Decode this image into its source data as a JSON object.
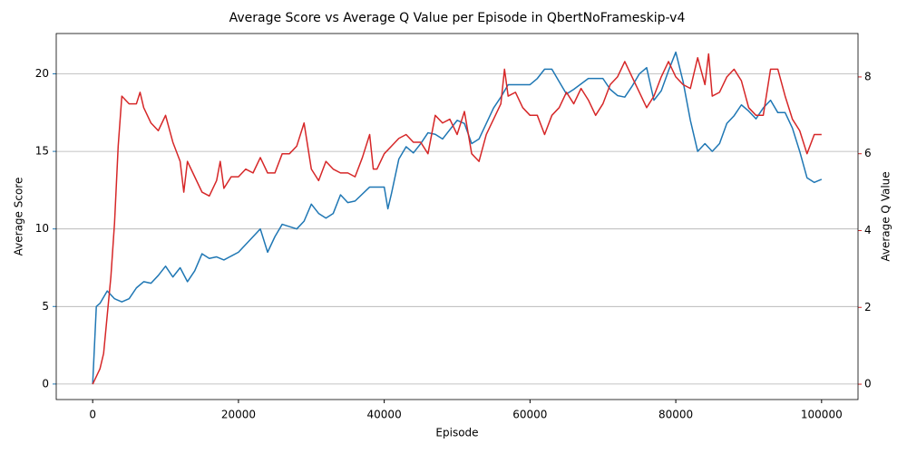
{
  "chart_data": {
    "type": "line",
    "title": "Average Score vs Average Q Value per Episode in QbertNoFrameskip-v4",
    "xlabel": "Episode",
    "ylabel": "Average Score",
    "y2label": "Average Q Value",
    "xlim": [
      -5000,
      105000
    ],
    "xticks": [
      0,
      20000,
      40000,
      60000,
      80000,
      100000
    ],
    "ylim": [
      -1.0,
      22.6
    ],
    "yticks": [
      0,
      5,
      10,
      15,
      20
    ],
    "y2lim": [
      -0.4,
      9.13
    ],
    "y2ticks": [
      0,
      2,
      4,
      6,
      8
    ],
    "grid": true,
    "series": [
      {
        "color": "#1f77b4",
        "x": [
          0,
          500,
          1000,
          2000,
          3000,
          4000,
          5000,
          6000,
          7000,
          8000,
          9000,
          10000,
          11000,
          12000,
          13000,
          14000,
          15000,
          16000,
          17000,
          18000,
          20000,
          22000,
          23000,
          24000,
          25000,
          26000,
          28000,
          29000,
          30000,
          31000,
          32000,
          33000,
          34000,
          35000,
          36000,
          38000,
          40000,
          40500,
          41000,
          42000,
          43000,
          44000,
          45000,
          46000,
          47000,
          48000,
          50000,
          51000,
          52000,
          53000,
          54000,
          55000,
          56000,
          57000,
          58000,
          60000,
          61000,
          62000,
          63000,
          64000,
          65000,
          66000,
          68000,
          70000,
          71000,
          72000,
          73000,
          74000,
          75000,
          76000,
          77000,
          78000,
          79000,
          80000,
          81000,
          82000,
          83000,
          84000,
          85000,
          86000,
          87000,
          88000,
          89000,
          90000,
          91000,
          92000,
          93000,
          94000,
          95000,
          96000,
          97000,
          98000,
          99000,
          100000
        ],
        "values": [
          0,
          5,
          5.2,
          6,
          5.5,
          5.3,
          5.5,
          6.2,
          6.6,
          6.5,
          7,
          7.6,
          6.9,
          7.5,
          6.6,
          7.3,
          8.4,
          8.1,
          8.2,
          8.0,
          8.5,
          9.5,
          10,
          8.5,
          9.5,
          10.3,
          10,
          10.5,
          11.6,
          11,
          10.7,
          11,
          12.2,
          11.7,
          11.8,
          12.7,
          12.7,
          11.3,
          12.3,
          14.5,
          15.3,
          14.9,
          15.5,
          16.2,
          16.1,
          15.8,
          17,
          16.8,
          15.5,
          15.8,
          16.8,
          17.8,
          18.5,
          19.3,
          19.3,
          19.3,
          19.7,
          20.3,
          20.3,
          19.5,
          18.7,
          19,
          19.7,
          19.7,
          19,
          18.6,
          18.5,
          19.2,
          20,
          20.4,
          18.3,
          18.9,
          20.2,
          21.4,
          19.5,
          17,
          15,
          15.5,
          15,
          15.5,
          16.8,
          17.3,
          18,
          17.6,
          17.1,
          17.8,
          18.3,
          17.5,
          17.5,
          16.5,
          15,
          13.3,
          13,
          13.2
        ]
      },
      {
        "color": "#d62728",
        "axis": "y2",
        "x": [
          0,
          1000,
          1500,
          2000,
          2500,
          3000,
          3500,
          4000,
          5000,
          6000,
          6500,
          7000,
          8000,
          9000,
          10000,
          11000,
          12000,
          12500,
          13000,
          14000,
          15000,
          16000,
          17000,
          17500,
          18000,
          19000,
          20000,
          21000,
          22000,
          23000,
          24000,
          25000,
          26000,
          27000,
          28000,
          29000,
          30000,
          31000,
          32000,
          33000,
          34000,
          35000,
          36000,
          37000,
          38000,
          38500,
          39000,
          40000,
          41000,
          42000,
          43000,
          44000,
          45000,
          46000,
          47000,
          48000,
          49000,
          50000,
          51000,
          52000,
          53000,
          54000,
          55000,
          56000,
          56500,
          57000,
          58000,
          59000,
          60000,
          61000,
          62000,
          63000,
          64000,
          65000,
          66000,
          67000,
          68000,
          69000,
          70000,
          71000,
          72000,
          73000,
          74000,
          75000,
          76000,
          77000,
          78000,
          79000,
          80000,
          81000,
          82000,
          83000,
          84000,
          84500,
          85000,
          86000,
          87000,
          88000,
          89000,
          90000,
          91000,
          92000,
          93000,
          94000,
          95000,
          96000,
          97000,
          98000,
          99000,
          100000
        ],
        "values": [
          0,
          0.4,
          0.8,
          1.8,
          2.8,
          4.2,
          6.2,
          7.5,
          7.3,
          7.3,
          7.6,
          7.2,
          6.8,
          6.6,
          7.0,
          6.3,
          5.8,
          5.0,
          5.8,
          5.4,
          5.0,
          4.9,
          5.3,
          5.8,
          5.1,
          5.4,
          5.4,
          5.6,
          5.5,
          5.9,
          5.5,
          5.5,
          6.0,
          6.0,
          6.2,
          6.8,
          5.6,
          5.3,
          5.8,
          5.6,
          5.5,
          5.5,
          5.4,
          5.9,
          6.5,
          5.6,
          5.6,
          6.0,
          6.2,
          6.4,
          6.5,
          6.3,
          6.3,
          6.0,
          7.0,
          6.8,
          6.9,
          6.5,
          7.1,
          6.0,
          5.8,
          6.5,
          6.9,
          7.3,
          8.2,
          7.5,
          7.6,
          7.2,
          7.0,
          7.0,
          6.5,
          7.0,
          7.2,
          7.6,
          7.3,
          7.7,
          7.4,
          7.0,
          7.3,
          7.8,
          8.0,
          8.4,
          8.0,
          7.6,
          7.2,
          7.5,
          8.0,
          8.4,
          8.0,
          7.8,
          7.7,
          8.5,
          7.8,
          8.6,
          7.5,
          7.6,
          8.0,
          8.2,
          7.9,
          7.2,
          7.0,
          7.0,
          8.2,
          8.2,
          7.5,
          6.9,
          6.6,
          6.0,
          6.5,
          6.5
        ]
      }
    ]
  }
}
